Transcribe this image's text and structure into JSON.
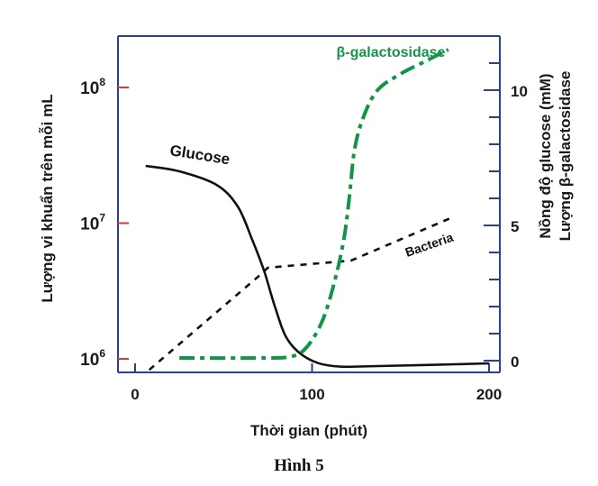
{
  "chart_data": {
    "type": "line",
    "title": "",
    "caption": "Hình 5",
    "xlabel": "Thời gian (phút)",
    "ylabel_left": "Lượng vi khuẩn trên mỗi mL",
    "ylabel_right": [
      "Nồng độ glucose (mM)",
      "Lượng β-galactosidase"
    ],
    "x_range": [
      -9,
      206
    ],
    "x_ticks": [
      0,
      100,
      200
    ],
    "x_tick_labels": [
      "0",
      "100",
      "200"
    ],
    "y_left": {
      "scale": "log",
      "range": [
        800000,
        200000000
      ],
      "ticks": [
        1000000,
        10000000,
        100000000
      ],
      "tick_labels": [
        {
          "base": "10",
          "exp": "6"
        },
        {
          "base": "10",
          "exp": "7"
        },
        {
          "base": "10",
          "exp": "8"
        }
      ]
    },
    "y_right": {
      "scale": "linear",
      "range": [
        -0.45,
        12
      ],
      "major_ticks": [
        0,
        5,
        10
      ],
      "tick_labels": [
        "0",
        "5",
        "10"
      ],
      "minor_ticks": [
        1,
        2,
        3,
        4,
        6,
        7,
        8,
        9,
        11
      ]
    },
    "grid": false,
    "legend": "inline labels",
    "series": [
      {
        "name": "Glucose",
        "axis": "right",
        "style": "solid",
        "color": "#111111",
        "x": [
          6,
          25,
          46,
          58,
          66,
          73,
          79,
          86,
          97,
          112,
          137,
          200
        ],
        "y": [
          7.2,
          7.0,
          6.5,
          5.7,
          4.5,
          3.3,
          2.0,
          0.8,
          0.1,
          -0.2,
          -0.2,
          -0.1
        ]
      },
      {
        "name": "Bacteria",
        "axis": "left",
        "style": "dashed",
        "color": "#111111",
        "x": [
          8,
          72,
          75,
          122,
          179
        ],
        "y": [
          830000,
          4300000,
          4700000,
          5300000,
          11000000
        ]
      },
      {
        "name": "β-galactosidase",
        "axis": "right",
        "style": "dash-dot",
        "color": "#149447",
        "x": [
          25,
          70,
          88,
          97,
          106,
          113,
          118,
          121,
          124,
          129,
          137,
          150,
          165,
          177
        ],
        "y": [
          0.1,
          0.1,
          0.15,
          0.5,
          1.5,
          3.0,
          4.5,
          6.0,
          7.8,
          9.0,
          10.0,
          10.6,
          11.1,
          11.5
        ]
      }
    ]
  },
  "colors": {
    "axis": "#2d3f8f",
    "left_tick": "#d23a3a",
    "glucose": "#111111",
    "bacteria": "#111111",
    "beta_gal": "#149447"
  }
}
